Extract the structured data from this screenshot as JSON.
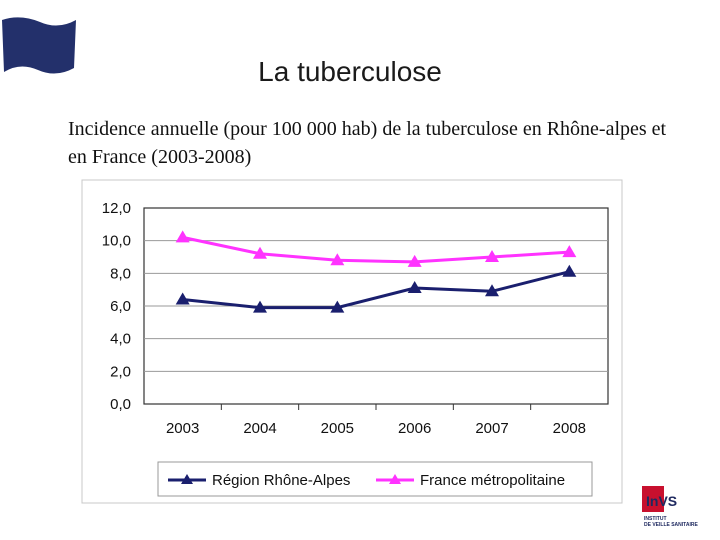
{
  "title": "La tuberculose",
  "subtitle": "Incidence annuelle (pour 100 000 hab) de la tuberculose en Rhône-alpes et en France (2003-2008)",
  "logo": {
    "name": "InVS",
    "line1": "INSTITUT",
    "line2": "DE VEILLE SANITAIRE"
  },
  "colors": {
    "flag": "#23306b",
    "series1": "#1a1f6e",
    "series2": "#ff33ff"
  },
  "chart_data": {
    "type": "line",
    "x": [
      "2003",
      "2004",
      "2005",
      "2006",
      "2007",
      "2008"
    ],
    "ylim": [
      0,
      12
    ],
    "yticks": [
      "0,0",
      "2,0",
      "4,0",
      "6,0",
      "8,0",
      "10,0",
      "12,0"
    ],
    "grid": true,
    "legend_position": "bottom",
    "series": [
      {
        "name": "Région Rhône-Alpes",
        "values": [
          6.4,
          5.9,
          5.9,
          7.1,
          6.9,
          8.1
        ]
      },
      {
        "name": "France métropolitaine",
        "values": [
          10.2,
          9.2,
          8.8,
          8.7,
          9.0,
          9.3
        ]
      }
    ]
  }
}
